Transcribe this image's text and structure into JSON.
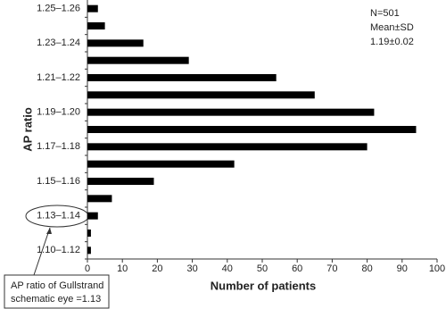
{
  "chart_data": {
    "type": "barh",
    "categories": [
      "1.10–1.12",
      null,
      "1.13–1.14",
      null,
      "1.15–1.16",
      null,
      "1.17–1.18",
      null,
      "1.19–1.20",
      null,
      "1.21–1.22",
      null,
      "1.23–1.24",
      null,
      "1.25–1.26"
    ],
    "values": [
      1,
      1,
      3,
      7,
      19,
      42,
      80,
      94,
      82,
      65,
      54,
      29,
      16,
      5,
      3
    ],
    "color": "#000000",
    "xlim": [
      0,
      100
    ],
    "xticks": [
      0,
      10,
      20,
      30,
      40,
      50,
      60,
      70,
      80,
      90,
      100
    ],
    "xlabel": "Number of patients",
    "ylabel": "AP ratio",
    "stats": [
      "N=501",
      "Mean±SD",
      "1.19±0.02"
    ],
    "callout": [
      "AP ratio of Gullstrand",
      "schematic eye =1.13"
    ]
  }
}
